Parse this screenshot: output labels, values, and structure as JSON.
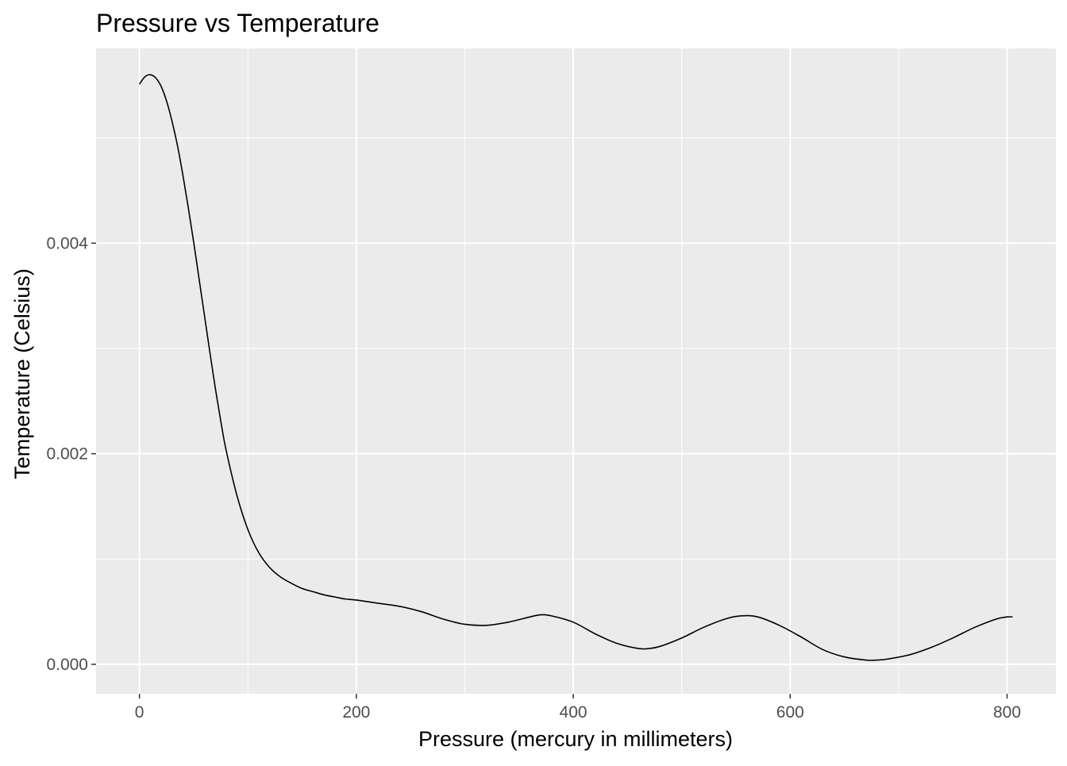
{
  "chart_data": {
    "type": "line",
    "title": "Pressure vs Temperature",
    "xlabel": "Pressure (mercury in millimeters)",
    "ylabel": "Temperature (Celsius)",
    "xlim": [
      -40,
      845
    ],
    "ylim": [
      -0.00028,
      0.00585
    ],
    "x_ticks": [
      0,
      200,
      400,
      600,
      800
    ],
    "x_tick_labels": [
      "0",
      "200",
      "400",
      "600",
      "800"
    ],
    "y_ticks": [
      0.0,
      0.002,
      0.004
    ],
    "y_tick_labels": [
      "0.000",
      "0.002",
      "0.004"
    ],
    "grid": true,
    "colors": {
      "panel_background": "#ebebeb",
      "grid_major": "#ffffff",
      "line": "#000000",
      "tick_label": "#4d4d4d"
    },
    "series": [
      {
        "x": [
          0,
          5,
          10,
          15,
          20,
          25,
          30,
          35,
          40,
          45,
          50,
          55,
          60,
          65,
          70,
          75,
          80,
          90,
          100,
          110,
          120,
          130,
          140,
          150,
          160,
          170,
          180,
          190,
          200,
          220,
          240,
          260,
          280,
          300,
          320,
          340,
          360,
          370,
          380,
          400,
          420,
          440,
          460,
          470,
          480,
          500,
          520,
          540,
          555,
          570,
          590,
          610,
          630,
          650,
          670,
          680,
          690,
          710,
          730,
          750,
          770,
          790,
          800,
          805
        ],
        "y": [
          0.00551,
          0.00558,
          0.0056,
          0.00557,
          0.00549,
          0.00535,
          0.00516,
          0.00493,
          0.00465,
          0.00434,
          0.00401,
          0.00366,
          0.00331,
          0.00296,
          0.00262,
          0.00231,
          0.00203,
          0.0016,
          0.00128,
          0.00106,
          0.00092,
          0.00083,
          0.00077,
          0.00072,
          0.00069,
          0.00066,
          0.00064,
          0.00062,
          0.00061,
          0.00058,
          0.00055,
          0.0005,
          0.00043,
          0.00038,
          0.00037,
          0.0004,
          0.00045,
          0.00047,
          0.00046,
          0.0004,
          0.00029,
          0.0002,
          0.00015,
          0.00015,
          0.00017,
          0.00025,
          0.00035,
          0.00043,
          0.00046,
          0.00045,
          0.00037,
          0.00026,
          0.00014,
          7e-05,
          4e-05,
          4e-05,
          5e-05,
          9e-05,
          0.00016,
          0.00025,
          0.00035,
          0.00043,
          0.00045,
          0.00045
        ]
      }
    ]
  }
}
